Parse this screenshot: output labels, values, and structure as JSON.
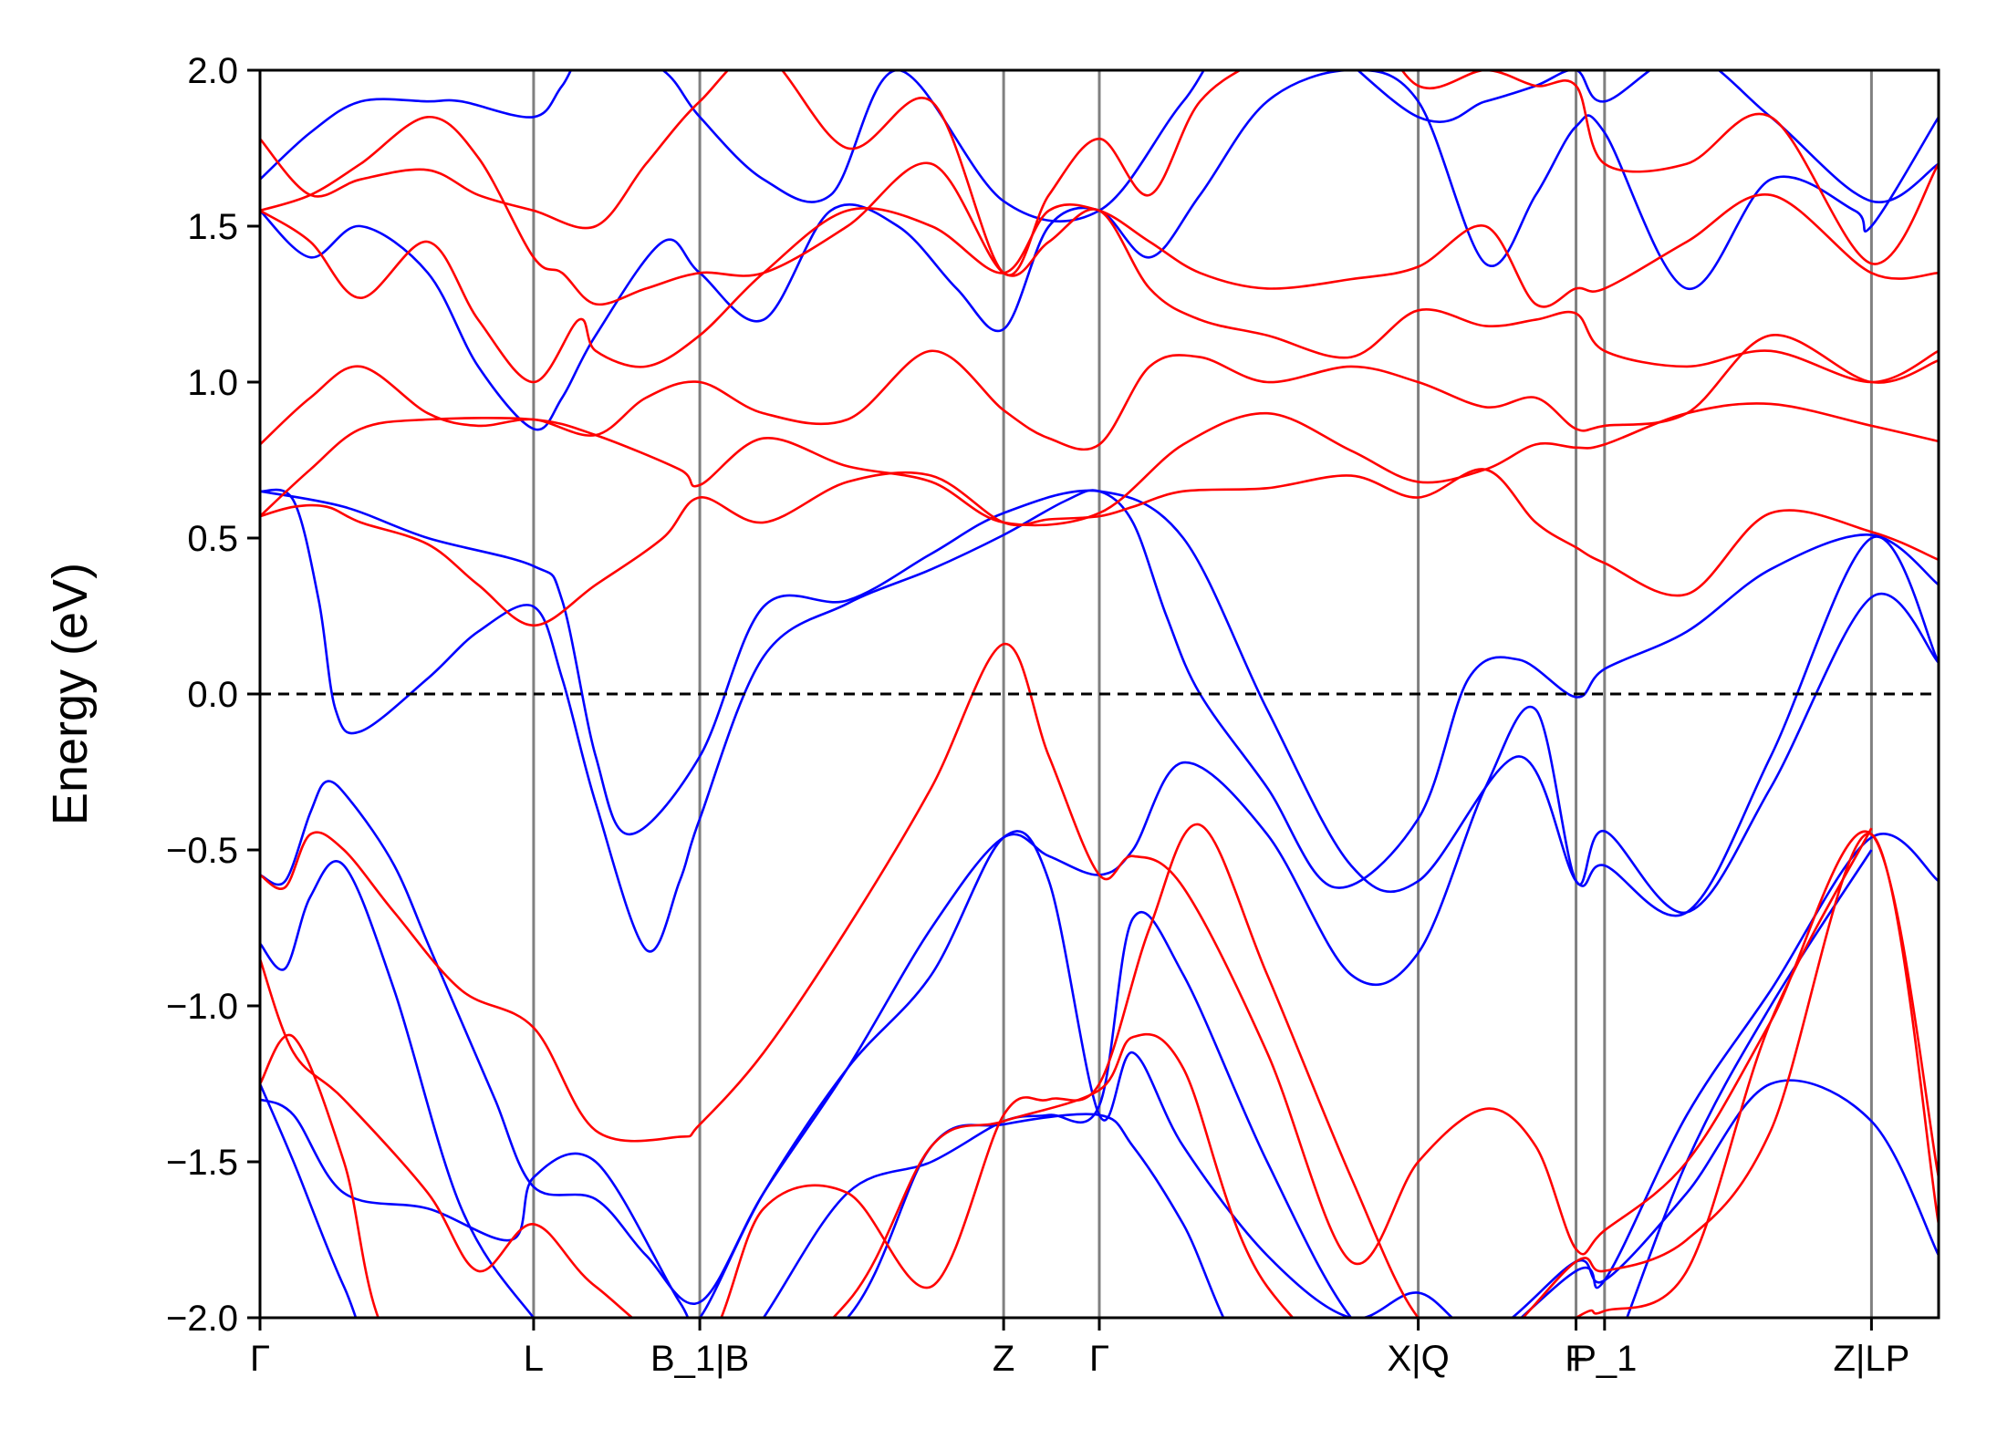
{
  "chart_data": {
    "type": "line",
    "title": "",
    "xlabel": "",
    "ylabel": "Energy (eV)",
    "ylim": [
      -2.0,
      2.0
    ],
    "xlim": [
      0,
      1.0
    ],
    "y_ticks": [
      -2.0,
      -1.5,
      -1.0,
      -0.5,
      0.0,
      0.5,
      1.0,
      1.5,
      2.0
    ],
    "y_tick_labels": [
      "−2.0",
      "−1.5",
      "−1.0",
      "−0.5",
      "0.0",
      "0.5",
      "1.0",
      "1.5",
      "2.0"
    ],
    "kpoints": [
      {
        "label": "Γ",
        "x": 0.0
      },
      {
        "label": "L",
        "x": 0.163
      },
      {
        "label": "B_1|B",
        "x": 0.262
      },
      {
        "label": "Z",
        "x": 0.443
      },
      {
        "label": "Γ",
        "x": 0.5
      },
      {
        "label": "X|Q",
        "x": 0.69
      },
      {
        "label": "F",
        "x": 0.784
      },
      {
        "label": "P_1",
        "x": 0.801
      },
      {
        "label": "Z|LP",
        "x": 0.96
      }
    ],
    "fermi_level": 0.0,
    "grid": false,
    "legend": "none",
    "colors": {
      "spin_up": "#0000ff",
      "spin_down": "#ff0000",
      "kpath_lines": "#808080",
      "fermi_line": "#000000"
    },
    "series": [
      {
        "color": "#0000ff",
        "x": [
          0,
          0.015,
          0.03,
          0.04,
          0.055,
          0.08,
          0.1,
          0.12,
          0.14,
          0.163,
          0.2,
          0.23,
          0.262,
          0.3,
          0.35,
          0.4,
          0.443,
          0.47,
          0.5,
          0.52,
          0.55,
          0.6,
          0.65,
          0.69,
          0.73,
          0.76,
          0.784,
          0.801,
          0.85,
          0.9,
          0.96,
          1.0
        ],
        "y": [
          -0.58,
          -0.6,
          -0.38,
          -0.28,
          -0.35,
          -0.55,
          -0.8,
          -1.05,
          -1.3,
          -1.58,
          -1.62,
          -1.8,
          -1.95,
          -1.6,
          -1.2,
          -0.75,
          -0.46,
          -0.52,
          -0.58,
          -0.5,
          -0.22,
          -0.45,
          -0.9,
          -0.83,
          -0.3,
          -0.05,
          -0.6,
          -0.44,
          -0.7,
          -0.3,
          0.31,
          0.1
        ]
      },
      {
        "color": "#0000ff",
        "x": [
          0,
          0.02,
          0.035,
          0.045,
          0.06,
          0.1,
          0.13,
          0.163,
          0.18,
          0.2,
          0.23,
          0.25,
          0.262,
          0.3,
          0.35,
          0.4,
          0.443,
          0.48,
          0.5,
          0.52,
          0.54,
          0.56,
          0.6,
          0.64,
          0.69,
          0.72,
          0.75,
          0.784,
          0.801,
          0.85,
          0.9,
          0.96,
          1.0
        ],
        "y": [
          0.65,
          0.62,
          0.3,
          -0.05,
          -0.12,
          0.05,
          0.2,
          0.28,
          0.05,
          -0.35,
          -0.82,
          -0.6,
          -0.4,
          0.12,
          0.29,
          0.4,
          0.51,
          0.62,
          0.65,
          0.55,
          0.25,
          0.0,
          -0.3,
          -0.62,
          -0.4,
          0.05,
          0.11,
          -0.01,
          0.08,
          0.2,
          0.4,
          0.51,
          0.35
        ]
      },
      {
        "color": "#0000ff",
        "x": [
          0,
          0.05,
          0.1,
          0.163,
          0.18,
          0.2,
          0.22,
          0.262,
          0.3,
          0.35,
          0.4,
          0.443,
          0.5,
          0.55,
          0.6,
          0.65,
          0.69,
          0.75,
          0.784,
          0.801,
          0.85,
          0.9,
          0.96,
          1.0
        ],
        "y": [
          0.65,
          0.6,
          0.5,
          0.41,
          0.3,
          -0.2,
          -0.45,
          -0.2,
          0.28,
          0.3,
          0.45,
          0.58,
          0.65,
          0.5,
          -0.05,
          -0.55,
          -0.6,
          -0.2,
          -0.6,
          -0.55,
          -0.7,
          -0.2,
          0.5,
          0.1
        ]
      },
      {
        "color": "#0000ff",
        "x": [
          0,
          0.03,
          0.06,
          0.1,
          0.13,
          0.163,
          0.18,
          0.2,
          0.24,
          0.262,
          0.3,
          0.34,
          0.38,
          0.415,
          0.443,
          0.47,
          0.5,
          0.53,
          0.56,
          0.6,
          0.65,
          0.69,
          0.73,
          0.76,
          0.784,
          0.801,
          0.85,
          0.9,
          0.95,
          0.96,
          1.0
        ],
        "y": [
          1.55,
          1.4,
          1.5,
          1.35,
          1.05,
          0.85,
          0.95,
          1.15,
          1.45,
          1.35,
          1.2,
          1.55,
          1.5,
          1.3,
          1.17,
          1.5,
          1.55,
          1.4,
          1.6,
          1.9,
          2.0,
          1.9,
          1.38,
          1.6,
          1.82,
          1.8,
          1.3,
          1.65,
          1.55,
          1.5,
          1.85
        ]
      },
      {
        "color": "#0000ff",
        "x": [
          0,
          0.03,
          0.06,
          0.1,
          0.12,
          0.163,
          0.18,
          0.2,
          0.24,
          0.262,
          0.3,
          0.34,
          0.38,
          0.443,
          0.5,
          0.55,
          0.6,
          0.69,
          0.73,
          0.76,
          0.784,
          0.801,
          0.85,
          0.9,
          0.96,
          1.0
        ],
        "y": [
          1.65,
          1.8,
          1.9,
          1.9,
          1.9,
          1.85,
          1.95,
          2.1,
          2.0,
          1.85,
          1.65,
          1.6,
          2.0,
          1.58,
          1.55,
          1.9,
          2.2,
          1.85,
          1.9,
          1.95,
          2.0,
          1.9,
          2.05,
          1.85,
          1.58,
          1.7
        ]
      },
      {
        "color": "#0000ff",
        "x": [
          0,
          0.02,
          0.05,
          0.1,
          0.15,
          0.163,
          0.2,
          0.25,
          0.262,
          0.3,
          0.35,
          0.4,
          0.443,
          0.47,
          0.5,
          0.52,
          0.55,
          0.6,
          0.65,
          0.69,
          0.73,
          0.784,
          0.801,
          0.85,
          0.9,
          0.96,
          1.0
        ],
        "y": [
          -1.3,
          -1.35,
          -1.6,
          -1.65,
          -1.75,
          -1.55,
          -1.5,
          -1.95,
          -2.0,
          -1.6,
          -1.2,
          -0.9,
          -0.46,
          -0.6,
          -1.35,
          -1.15,
          -1.45,
          -1.8,
          -2.0,
          -1.92,
          -2.05,
          -1.82,
          -1.88,
          -1.6,
          -1.25,
          -1.37,
          -1.8
        ]
      },
      {
        "color": "#0000ff",
        "x": [
          0,
          0.015,
          0.03,
          0.05,
          0.08,
          0.12,
          0.163,
          0.2,
          0.262,
          0.3,
          0.35,
          0.4,
          0.443,
          0.47,
          0.5,
          0.52,
          0.55,
          0.6,
          0.65,
          0.7,
          0.784,
          0.801,
          0.85,
          0.9,
          0.96,
          1.0
        ],
        "y": [
          -0.8,
          -0.88,
          -0.65,
          -0.55,
          -0.95,
          -1.65,
          -2.0,
          -2.2,
          -2.3,
          -2.0,
          -1.6,
          -1.5,
          -1.37,
          -1.35,
          -1.32,
          -0.72,
          -0.9,
          -1.5,
          -2.0,
          -2.2,
          -1.85,
          -1.88,
          -1.35,
          -0.95,
          -0.46,
          -0.6
        ]
      },
      {
        "color": "#0000ff",
        "x": [
          0,
          0.02,
          0.05,
          0.08,
          0.163,
          0.262,
          0.35,
          0.4,
          0.443,
          0.5,
          0.52,
          0.55,
          0.6,
          0.7,
          0.784,
          0.8,
          0.85,
          0.9,
          0.96
        ],
        "y": [
          -1.25,
          -1.5,
          -1.9,
          -2.2,
          -2.3,
          -2.3,
          -2.0,
          -1.45,
          -1.38,
          -1.35,
          -1.45,
          -1.7,
          -2.2,
          -2.3,
          -2.3,
          -2.2,
          -1.5,
          -1.0,
          -0.5
        ]
      },
      {
        "color": "#ff0000",
        "x": [
          0,
          0.015,
          0.03,
          0.05,
          0.08,
          0.12,
          0.163,
          0.2,
          0.25,
          0.262,
          0.3,
          0.35,
          0.4,
          0.443,
          0.47,
          0.5,
          0.52,
          0.55,
          0.6,
          0.65,
          0.69,
          0.73,
          0.76,
          0.784,
          0.801,
          0.85,
          0.9,
          0.96,
          1.0
        ],
        "y": [
          -0.58,
          -0.62,
          -0.45,
          -0.5,
          -0.7,
          -0.95,
          -1.07,
          -1.4,
          -1.42,
          -1.38,
          -1.15,
          -0.75,
          -0.3,
          0.16,
          -0.2,
          -0.58,
          -0.52,
          -0.62,
          -1.15,
          -1.82,
          -1.5,
          -1.33,
          -1.45,
          -1.78,
          -1.72,
          -1.5,
          -1.05,
          -0.45,
          -1.55
        ]
      },
      {
        "color": "#ff0000",
        "x": [
          0,
          0.02,
          0.04,
          0.06,
          0.1,
          0.13,
          0.163,
          0.2,
          0.24,
          0.262,
          0.3,
          0.35,
          0.4,
          0.443,
          0.47,
          0.5,
          0.52,
          0.55,
          0.6,
          0.65,
          0.69,
          0.73,
          0.76,
          0.784,
          0.801,
          0.85,
          0.9,
          0.96,
          1.0
        ],
        "y": [
          0.57,
          0.6,
          0.6,
          0.55,
          0.48,
          0.35,
          0.22,
          0.35,
          0.5,
          0.63,
          0.55,
          0.68,
          0.7,
          0.55,
          0.56,
          0.57,
          0.6,
          0.65,
          0.66,
          0.7,
          0.63,
          0.72,
          0.55,
          0.47,
          0.42,
          0.32,
          0.58,
          0.52,
          0.43
        ]
      },
      {
        "color": "#ff0000",
        "x": [
          0,
          0.03,
          0.06,
          0.1,
          0.13,
          0.163,
          0.2,
          0.23,
          0.262,
          0.3,
          0.35,
          0.4,
          0.443,
          0.47,
          0.5,
          0.53,
          0.56,
          0.6,
          0.65,
          0.69,
          0.73,
          0.76,
          0.784,
          0.801,
          0.85,
          0.9,
          0.96,
          1.0
        ],
        "y": [
          0.8,
          0.95,
          1.05,
          0.9,
          0.86,
          0.88,
          0.83,
          0.95,
          1.0,
          0.9,
          0.88,
          1.1,
          0.91,
          0.82,
          0.8,
          1.05,
          1.08,
          1.0,
          1.05,
          1.0,
          0.92,
          0.95,
          0.85,
          0.86,
          0.9,
          1.15,
          1.0,
          1.07
        ]
      },
      {
        "color": "#ff0000",
        "x": [
          0,
          0.03,
          0.06,
          0.1,
          0.163,
          0.2,
          0.25,
          0.262,
          0.3,
          0.35,
          0.4,
          0.443,
          0.5,
          0.55,
          0.6,
          0.65,
          0.69,
          0.73,
          0.76,
          0.784,
          0.801,
          0.85,
          0.9,
          0.96,
          1.0
        ],
        "y": [
          0.57,
          0.72,
          0.85,
          0.88,
          0.88,
          0.83,
          0.72,
          0.67,
          0.82,
          0.73,
          0.68,
          0.55,
          0.58,
          0.8,
          0.9,
          0.78,
          0.68,
          0.72,
          0.8,
          0.79,
          0.8,
          0.9,
          0.93,
          0.86,
          0.81
        ]
      },
      {
        "color": "#ff0000",
        "x": [
          0,
          0.03,
          0.06,
          0.1,
          0.13,
          0.163,
          0.19,
          0.2,
          0.23,
          0.262,
          0.3,
          0.35,
          0.4,
          0.443,
          0.47,
          0.5,
          0.53,
          0.56,
          0.6,
          0.65,
          0.69,
          0.73,
          0.76,
          0.784,
          0.801,
          0.85,
          0.9,
          0.96,
          1.0
        ],
        "y": [
          1.55,
          1.45,
          1.27,
          1.45,
          1.2,
          1.0,
          1.2,
          1.1,
          1.05,
          1.15,
          1.35,
          1.55,
          1.5,
          1.35,
          1.55,
          1.55,
          1.45,
          1.35,
          1.3,
          1.33,
          1.37,
          1.5,
          1.25,
          1.3,
          1.3,
          1.45,
          1.6,
          1.35,
          1.35
        ]
      },
      {
        "color": "#ff0000",
        "x": [
          0,
          0.03,
          0.06,
          0.1,
          0.13,
          0.163,
          0.18,
          0.2,
          0.23,
          0.262,
          0.3,
          0.35,
          0.4,
          0.443,
          0.47,
          0.5,
          0.53,
          0.56,
          0.6,
          0.65,
          0.69,
          0.73,
          0.76,
          0.784,
          0.801,
          0.85,
          0.9,
          0.96,
          1.0
        ],
        "y": [
          1.55,
          1.6,
          1.7,
          1.85,
          1.72,
          1.4,
          1.35,
          1.25,
          1.3,
          1.35,
          1.35,
          1.5,
          1.7,
          1.35,
          1.45,
          1.55,
          1.3,
          1.2,
          1.15,
          1.08,
          1.23,
          1.18,
          1.2,
          1.22,
          1.1,
          1.05,
          1.1,
          1.0,
          1.1
        ]
      },
      {
        "color": "#ff0000",
        "x": [
          0,
          0.03,
          0.06,
          0.1,
          0.13,
          0.163,
          0.2,
          0.23,
          0.262,
          0.3,
          0.35,
          0.4,
          0.443,
          0.47,
          0.5,
          0.53,
          0.56,
          0.6,
          0.65,
          0.69,
          0.73,
          0.76,
          0.784,
          0.801,
          0.85,
          0.9,
          0.96,
          1.0
        ],
        "y": [
          1.78,
          1.6,
          1.65,
          1.68,
          1.6,
          1.55,
          1.5,
          1.7,
          1.9,
          2.05,
          1.75,
          1.9,
          1.35,
          1.6,
          1.78,
          1.6,
          1.9,
          2.05,
          2.2,
          1.95,
          2.0,
          1.95,
          1.95,
          1.7,
          1.7,
          1.85,
          1.38,
          1.7
        ]
      },
      {
        "color": "#ff0000",
        "x": [
          0,
          0.02,
          0.05,
          0.1,
          0.13,
          0.163,
          0.2,
          0.262,
          0.3,
          0.35,
          0.4,
          0.443,
          0.47,
          0.5,
          0.53,
          0.56,
          0.6,
          0.65,
          0.69,
          0.73,
          0.784,
          0.801,
          0.85,
          0.9,
          0.96,
          1.0
        ],
        "y": [
          -0.85,
          -1.15,
          -1.3,
          -1.6,
          -1.85,
          -1.7,
          -1.9,
          -2.1,
          -1.65,
          -1.6,
          -1.9,
          -1.35,
          -1.3,
          -1.25,
          -0.75,
          -0.42,
          -0.9,
          -1.55,
          -2.0,
          -2.1,
          -1.82,
          -1.85,
          -1.75,
          -1.4,
          -0.45,
          -1.7
        ]
      },
      {
        "color": "#ff0000",
        "x": [
          0,
          0.02,
          0.05,
          0.08,
          0.163,
          0.262,
          0.35,
          0.4,
          0.443,
          0.5,
          0.52,
          0.55,
          0.6,
          0.7,
          0.784,
          0.8,
          0.85,
          0.9,
          0.96
        ],
        "y": [
          -1.25,
          -1.1,
          -1.5,
          -2.1,
          -2.3,
          -2.3,
          -1.95,
          -1.45,
          -1.37,
          -1.27,
          -1.1,
          -1.2,
          -1.9,
          -2.3,
          -2.0,
          -1.98,
          -1.85,
          -1.05,
          -0.43
        ]
      }
    ]
  }
}
